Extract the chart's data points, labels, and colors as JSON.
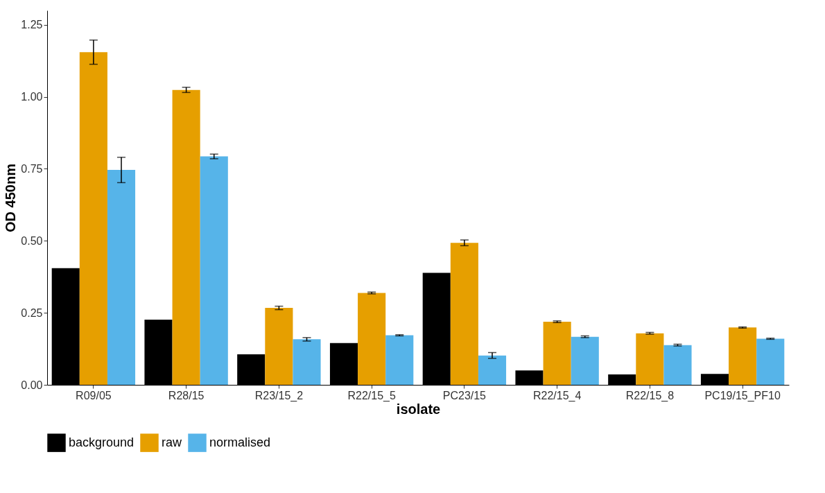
{
  "chart_data": {
    "type": "bar",
    "xlabel": "isolate",
    "ylabel": "OD 450nm",
    "categories": [
      "R09/05",
      "R28/15",
      "R23/15_2",
      "R22/15_5",
      "PC23/15",
      "R22/15_4",
      "R22/15_8",
      "PC19/15_PF10"
    ],
    "series": [
      {
        "name": "background",
        "color": "#000000",
        "values": [
          0.405,
          0.226,
          0.106,
          0.145,
          0.389,
          0.05,
          0.036,
          0.038
        ]
      },
      {
        "name": "raw",
        "color": "#e69f00",
        "values": [
          1.155,
          1.024,
          0.267,
          0.319,
          0.493,
          0.219,
          0.179,
          0.199
        ],
        "errors": [
          0.042,
          0.009,
          0.006,
          0.003,
          0.01,
          0.003,
          0.003,
          0.002
        ]
      },
      {
        "name": "normalised",
        "color": "#56b4e9",
        "values": [
          0.746,
          0.793,
          0.158,
          0.172,
          0.102,
          0.167,
          0.138,
          0.16
        ],
        "errors": [
          0.044,
          0.008,
          0.006,
          0.002,
          0.01,
          0.003,
          0.003,
          0.002
        ]
      }
    ],
    "ylim": [
      0,
      1.3
    ],
    "yticks": [
      {
        "value": 0,
        "label": "0.00"
      },
      {
        "value": 0.25,
        "label": "0.25"
      },
      {
        "value": 0.5,
        "label": "0.50"
      },
      {
        "value": 0.75,
        "label": "0.75"
      },
      {
        "value": 1,
        "label": "1.00"
      },
      {
        "value": 1.25,
        "label": "1.25"
      }
    ],
    "grid": false,
    "legend": "bottom"
  }
}
